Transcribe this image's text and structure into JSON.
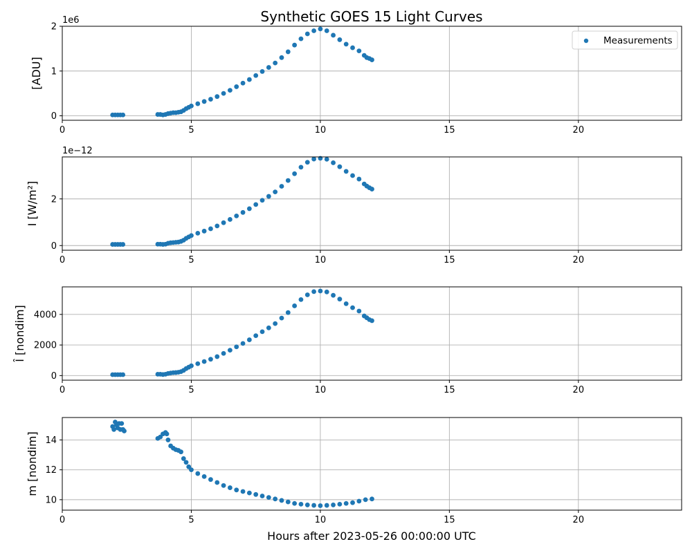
{
  "chart_data": {
    "type": "scatter",
    "title": "Synthetic GOES 15 Light Curves",
    "xlabel": "Hours after 2023-05-26 00:00:00 UTC",
    "xlim": [
      0,
      24
    ],
    "x_ticks": [
      0,
      5,
      10,
      15,
      20
    ],
    "grid": true,
    "legend": {
      "entries": [
        "Measurements"
      ],
      "placement": "top-right",
      "panel": 0
    },
    "marker_color": "#1f77b4",
    "panels": [
      {
        "ylabel": "[ADU]",
        "offset_text": "1e6",
        "ylim": [
          -0.1,
          2.0
        ],
        "y_ticks": [
          0,
          1,
          2
        ],
        "y_tick_labels": [
          "0",
          "1",
          "2"
        ],
        "series": [
          {
            "name": "Measurements",
            "x": [
              1.95,
              2.05,
              2.15,
              2.25,
              2.35,
              3.7,
              3.8,
              3.9,
              4.0,
              4.1,
              4.2,
              4.3,
              4.4,
              4.5,
              4.6,
              4.7,
              4.8,
              4.9,
              5.0,
              5.25,
              5.5,
              5.75,
              6.0,
              6.25,
              6.5,
              6.75,
              7.0,
              7.25,
              7.5,
              7.75,
              8.0,
              8.25,
              8.5,
              8.75,
              9.0,
              9.25,
              9.5,
              9.75,
              10.0,
              10.25,
              10.5,
              10.75,
              11.0,
              11.25,
              11.5,
              11.7,
              11.8,
              11.9,
              12.0
            ],
            "y": [
              0.02,
              0.02,
              0.02,
              0.02,
              0.02,
              0.03,
              0.03,
              0.02,
              0.03,
              0.05,
              0.06,
              0.07,
              0.07,
              0.08,
              0.09,
              0.12,
              0.16,
              0.19,
              0.22,
              0.27,
              0.32,
              0.37,
              0.43,
              0.5,
              0.57,
              0.65,
              0.73,
              0.81,
              0.9,
              0.99,
              1.08,
              1.18,
              1.3,
              1.43,
              1.58,
              1.72,
              1.83,
              1.9,
              1.94,
              1.9,
              1.8,
              1.7,
              1.6,
              1.52,
              1.45,
              1.35,
              1.3,
              1.28,
              1.25
            ]
          }
        ]
      },
      {
        "ylabel": "I [W/m²]",
        "offset_text": "1e−12",
        "ylim": [
          -0.2,
          3.8
        ],
        "y_ticks": [
          0,
          2
        ],
        "y_tick_labels": [
          "0",
          "2"
        ],
        "series": [
          {
            "name": "Measurements",
            "x": [
              1.95,
              2.05,
              2.15,
              2.25,
              2.35,
              3.7,
              3.8,
              3.9,
              4.0,
              4.1,
              4.2,
              4.3,
              4.4,
              4.5,
              4.6,
              4.7,
              4.8,
              4.9,
              5.0,
              5.25,
              5.5,
              5.75,
              6.0,
              6.25,
              6.5,
              6.75,
              7.0,
              7.25,
              7.5,
              7.75,
              8.0,
              8.25,
              8.5,
              8.75,
              9.0,
              9.25,
              9.5,
              9.75,
              10.0,
              10.25,
              10.5,
              10.75,
              11.0,
              11.25,
              11.5,
              11.7,
              11.8,
              11.9,
              12.0
            ],
            "y": [
              0.05,
              0.05,
              0.05,
              0.05,
              0.05,
              0.06,
              0.06,
              0.05,
              0.06,
              0.1,
              0.12,
              0.13,
              0.14,
              0.15,
              0.18,
              0.23,
              0.31,
              0.37,
              0.43,
              0.53,
              0.62,
              0.72,
              0.84,
              0.98,
              1.12,
              1.27,
              1.42,
              1.58,
              1.76,
              1.94,
              2.11,
              2.3,
              2.54,
              2.79,
              3.08,
              3.36,
              3.57,
              3.71,
              3.74,
              3.7,
              3.55,
              3.38,
              3.18,
              3.0,
              2.85,
              2.64,
              2.55,
              2.48,
              2.42
            ]
          }
        ]
      },
      {
        "ylabel": "Î [nondim]",
        "offset_text": "",
        "ylim": [
          -300,
          5800
        ],
        "y_ticks": [
          0,
          2000,
          4000
        ],
        "y_tick_labels": [
          "0",
          "2000",
          "4000"
        ],
        "series": [
          {
            "name": "Measurements",
            "x": [
              1.95,
              2.05,
              2.15,
              2.25,
              2.35,
              3.7,
              3.8,
              3.9,
              4.0,
              4.1,
              4.2,
              4.3,
              4.4,
              4.5,
              4.6,
              4.7,
              4.8,
              4.9,
              5.0,
              5.25,
              5.5,
              5.75,
              6.0,
              6.25,
              6.5,
              6.75,
              7.0,
              7.25,
              7.5,
              7.75,
              8.0,
              8.25,
              8.5,
              8.75,
              9.0,
              9.25,
              9.5,
              9.75,
              10.0,
              10.25,
              10.5,
              10.75,
              11.0,
              11.25,
              11.5,
              11.7,
              11.8,
              11.9,
              12.0
            ],
            "y": [
              60,
              60,
              60,
              60,
              60,
              90,
              90,
              70,
              90,
              140,
              170,
              190,
              200,
              220,
              260,
              340,
              460,
              550,
              640,
              780,
              920,
              1070,
              1240,
              1450,
              1660,
              1880,
              2100,
              2340,
              2610,
              2870,
              3120,
              3400,
              3760,
              4120,
              4560,
              4970,
              5280,
              5490,
              5530,
              5470,
              5250,
              5000,
              4700,
              4440,
              4220,
              3900,
              3780,
              3660,
              3590
            ]
          }
        ]
      },
      {
        "ylabel": "m [nondim]",
        "offset_text": "",
        "ylim": [
          9.3,
          15.5
        ],
        "y_ticks": [
          10,
          12,
          14
        ],
        "y_tick_labels": [
          "10",
          "12",
          "14"
        ],
        "series": [
          {
            "name": "Measurements",
            "x": [
              1.95,
              2.0,
              2.05,
              2.1,
              2.15,
              2.2,
              2.25,
              2.3,
              2.35,
              2.4,
              3.7,
              3.8,
              3.9,
              4.0,
              4.05,
              4.1,
              4.2,
              4.3,
              4.4,
              4.5,
              4.6,
              4.7,
              4.8,
              4.9,
              5.0,
              5.25,
              5.5,
              5.75,
              6.0,
              6.25,
              6.5,
              6.75,
              7.0,
              7.25,
              7.5,
              7.75,
              8.0,
              8.25,
              8.5,
              8.75,
              9.0,
              9.25,
              9.5,
              9.75,
              10.0,
              10.25,
              10.5,
              10.75,
              11.0,
              11.25,
              11.5,
              11.75,
              12.0
            ],
            "y": [
              14.9,
              14.7,
              15.2,
              15.0,
              14.8,
              15.1,
              14.7,
              15.1,
              14.7,
              14.6,
              14.1,
              14.2,
              14.4,
              14.5,
              14.4,
              14.0,
              13.6,
              13.45,
              13.35,
              13.3,
              13.2,
              12.75,
              12.5,
              12.2,
              12.0,
              11.75,
              11.55,
              11.35,
              11.15,
              10.95,
              10.8,
              10.65,
              10.55,
              10.45,
              10.35,
              10.25,
              10.15,
              10.05,
              9.95,
              9.85,
              9.75,
              9.7,
              9.65,
              9.62,
              9.6,
              9.62,
              9.65,
              9.7,
              9.75,
              9.8,
              9.9,
              10.0,
              10.05
            ]
          }
        ]
      }
    ]
  }
}
